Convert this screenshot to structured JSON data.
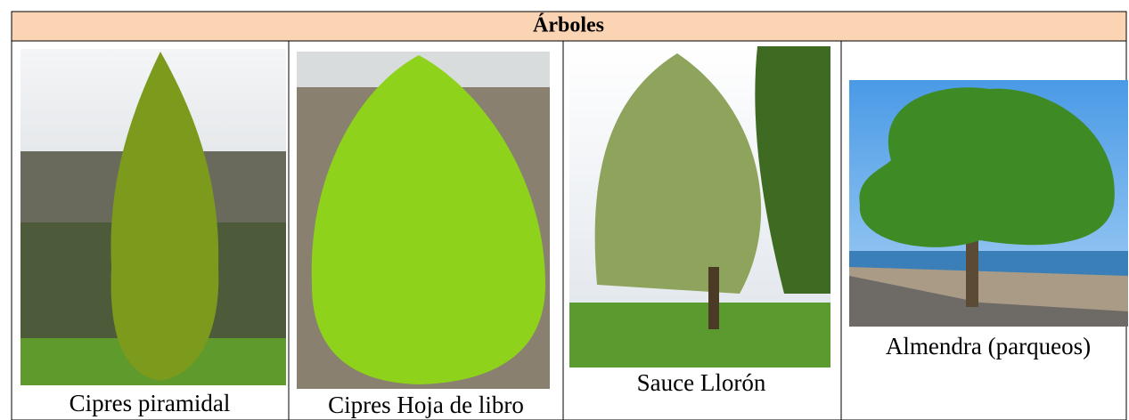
{
  "table": {
    "title": "Árboles",
    "cells": [
      {
        "caption": "Cipres piramidal"
      },
      {
        "caption": "Cipres Hoja de libro"
      },
      {
        "caption": "Sauce Llorón"
      },
      {
        "caption": "Almendra (parqueos)"
      }
    ]
  }
}
